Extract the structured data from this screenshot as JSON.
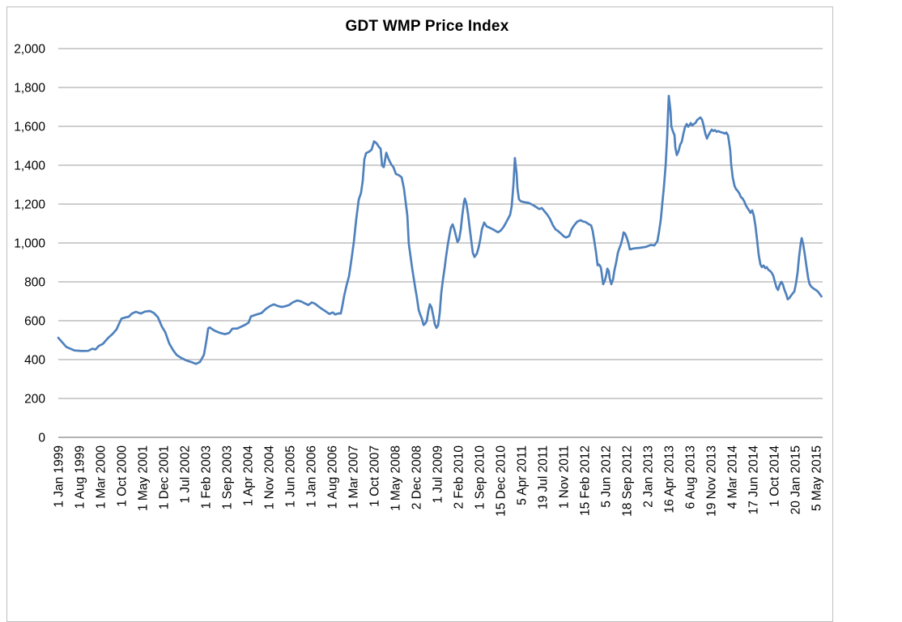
{
  "chart_data": {
    "type": "line",
    "title": "GDT WMP Price Index",
    "series_name": "GDT WMP Price Index",
    "xlabel": "",
    "ylabel": "",
    "ylim": [
      0,
      2000
    ],
    "ytick_step": 200,
    "y_ticks": [
      0,
      200,
      400,
      600,
      800,
      1000,
      1200,
      1400,
      1600,
      1800,
      2000
    ],
    "y_tick_labels": [
      "0",
      "200",
      "400",
      "600",
      "800",
      "1,000",
      "1,200",
      "1,400",
      "1,600",
      "1,800",
      "2,000"
    ],
    "x_tick_labels": [
      "1 Jan 1999",
      "1 Aug 1999",
      "1 Mar 2000",
      "1 Oct 2000",
      "1 May 2001",
      "1 Dec 2001",
      "1 Jul 2002",
      "1 Feb 2003",
      "1 Sep 2003",
      "1 Apr 2004",
      "1 Nov 2004",
      "1 Jun 2005",
      "1 Jan 2006",
      "1 Aug 2006",
      "1 Mar 2007",
      "1 Oct 2007",
      "1 May 2008",
      "2 Dec 2008",
      "1 Jul 2009",
      "2 Feb 2010",
      "1 Sep 2010",
      "15 Dec 2010",
      "5 Apr 2011",
      "19 Jul 2011",
      "1 Nov 2011",
      "15 Feb 2012",
      "5 Jun 2012",
      "18 Sep 2012",
      "2 Jan 2013",
      "16 Apr 2013",
      "6 Aug 2013",
      "19 Nov 2013",
      "4 Mar 2014",
      "17 Jun 2014",
      "1 Oct 2014",
      "20 Jan 2015",
      "5 May 2015"
    ],
    "grid": true,
    "legend": false,
    "colors": {
      "line": "#4F81BD",
      "gridline": "#9c9c9c",
      "axis": "#848484",
      "text": "#000000",
      "frame_border": "#bfbfbf",
      "background": "#ffffff"
    },
    "points_x_unit": "x-tick-index (0 = 1 Jan 1999, 36 = 5 May 2015)",
    "points": [
      [
        0.0,
        512
      ],
      [
        0.38,
        465
      ],
      [
        0.77,
        447
      ],
      [
        1.12,
        444
      ],
      [
        1.42,
        445
      ],
      [
        1.62,
        456
      ],
      [
        1.77,
        452
      ],
      [
        1.92,
        470
      ],
      [
        2.12,
        481
      ],
      [
        2.38,
        513
      ],
      [
        2.58,
        532
      ],
      [
        2.77,
        556
      ],
      [
        2.88,
        583
      ],
      [
        3.0,
        611
      ],
      [
        3.15,
        616
      ],
      [
        3.35,
        621
      ],
      [
        3.5,
        637
      ],
      [
        3.69,
        646
      ],
      [
        3.92,
        637
      ],
      [
        4.12,
        647
      ],
      [
        4.35,
        650
      ],
      [
        4.54,
        640
      ],
      [
        4.73,
        618
      ],
      [
        4.92,
        570
      ],
      [
        5.08,
        541
      ],
      [
        5.27,
        483
      ],
      [
        5.46,
        447
      ],
      [
        5.62,
        424
      ],
      [
        5.85,
        408
      ],
      [
        6.08,
        396
      ],
      [
        6.35,
        386
      ],
      [
        6.54,
        378
      ],
      [
        6.73,
        388
      ],
      [
        6.92,
        425
      ],
      [
        7.04,
        500
      ],
      [
        7.12,
        560
      ],
      [
        7.19,
        566
      ],
      [
        7.42,
        549
      ],
      [
        7.69,
        537
      ],
      [
        7.92,
        531
      ],
      [
        8.12,
        537
      ],
      [
        8.27,
        559
      ],
      [
        8.5,
        560
      ],
      [
        8.69,
        569
      ],
      [
        8.88,
        579
      ],
      [
        9.04,
        590
      ],
      [
        9.15,
        622
      ],
      [
        9.42,
        632
      ],
      [
        9.65,
        639
      ],
      [
        9.85,
        660
      ],
      [
        10.04,
        674
      ],
      [
        10.23,
        684
      ],
      [
        10.42,
        676
      ],
      [
        10.62,
        671
      ],
      [
        10.77,
        674
      ],
      [
        10.96,
        681
      ],
      [
        11.15,
        695
      ],
      [
        11.35,
        704
      ],
      [
        11.54,
        699
      ],
      [
        11.73,
        688
      ],
      [
        11.88,
        681
      ],
      [
        12.04,
        694
      ],
      [
        12.19,
        688
      ],
      [
        12.35,
        674
      ],
      [
        12.5,
        662
      ],
      [
        12.62,
        654
      ],
      [
        12.77,
        643
      ],
      [
        12.88,
        635
      ],
      [
        13.04,
        643
      ],
      [
        13.15,
        632
      ],
      [
        13.31,
        638
      ],
      [
        13.42,
        637
      ],
      [
        13.5,
        680
      ],
      [
        13.58,
        729
      ],
      [
        13.69,
        780
      ],
      [
        13.81,
        830
      ],
      [
        13.92,
        910
      ],
      [
        14.04,
        1005
      ],
      [
        14.15,
        1120
      ],
      [
        14.27,
        1222
      ],
      [
        14.38,
        1258
      ],
      [
        14.46,
        1320
      ],
      [
        14.54,
        1430
      ],
      [
        14.62,
        1462
      ],
      [
        14.77,
        1470
      ],
      [
        14.88,
        1480
      ],
      [
        15.0,
        1523
      ],
      [
        15.12,
        1513
      ],
      [
        15.23,
        1494
      ],
      [
        15.31,
        1485
      ],
      [
        15.38,
        1398
      ],
      [
        15.46,
        1390
      ],
      [
        15.58,
        1464
      ],
      [
        15.69,
        1432
      ],
      [
        15.81,
        1405
      ],
      [
        15.92,
        1390
      ],
      [
        16.04,
        1355
      ],
      [
        16.19,
        1348
      ],
      [
        16.31,
        1337
      ],
      [
        16.42,
        1280
      ],
      [
        16.5,
        1210
      ],
      [
        16.58,
        1140
      ],
      [
        16.65,
        995
      ],
      [
        16.73,
        932
      ],
      [
        16.81,
        868
      ],
      [
        16.88,
        820
      ],
      [
        16.96,
        765
      ],
      [
        17.04,
        716
      ],
      [
        17.12,
        655
      ],
      [
        17.19,
        633
      ],
      [
        17.27,
        611
      ],
      [
        17.35,
        578
      ],
      [
        17.42,
        584
      ],
      [
        17.5,
        598
      ],
      [
        17.58,
        652
      ],
      [
        17.65,
        684
      ],
      [
        17.73,
        668
      ],
      [
        17.81,
        626
      ],
      [
        17.88,
        584
      ],
      [
        17.96,
        563
      ],
      [
        18.04,
        575
      ],
      [
        18.12,
        640
      ],
      [
        18.19,
        740
      ],
      [
        18.27,
        810
      ],
      [
        18.35,
        870
      ],
      [
        18.42,
        930
      ],
      [
        18.5,
        990
      ],
      [
        18.58,
        1040
      ],
      [
        18.65,
        1080
      ],
      [
        18.73,
        1096
      ],
      [
        18.81,
        1070
      ],
      [
        18.88,
        1040
      ],
      [
        18.96,
        1005
      ],
      [
        19.04,
        1018
      ],
      [
        19.12,
        1070
      ],
      [
        19.19,
        1140
      ],
      [
        19.27,
        1210
      ],
      [
        19.31,
        1228
      ],
      [
        19.38,
        1205
      ],
      [
        19.46,
        1150
      ],
      [
        19.54,
        1080
      ],
      [
        19.62,
        1010
      ],
      [
        19.69,
        950
      ],
      [
        19.77,
        928
      ],
      [
        19.88,
        945
      ],
      [
        19.96,
        975
      ],
      [
        20.04,
        1015
      ],
      [
        20.12,
        1070
      ],
      [
        20.23,
        1105
      ],
      [
        20.35,
        1085
      ],
      [
        20.5,
        1078
      ],
      [
        20.65,
        1070
      ],
      [
        20.77,
        1062
      ],
      [
        20.88,
        1055
      ],
      [
        21.0,
        1062
      ],
      [
        21.15,
        1082
      ],
      [
        21.27,
        1105
      ],
      [
        21.38,
        1128
      ],
      [
        21.46,
        1145
      ],
      [
        21.54,
        1190
      ],
      [
        21.62,
        1300
      ],
      [
        21.69,
        1437
      ],
      [
        21.77,
        1360
      ],
      [
        21.81,
        1280
      ],
      [
        21.88,
        1225
      ],
      [
        21.96,
        1215
      ],
      [
        22.12,
        1210
      ],
      [
        22.31,
        1207
      ],
      [
        22.46,
        1200
      ],
      [
        22.58,
        1193
      ],
      [
        22.73,
        1183
      ],
      [
        22.85,
        1174
      ],
      [
        22.96,
        1180
      ],
      [
        23.12,
        1160
      ],
      [
        23.23,
        1145
      ],
      [
        23.35,
        1125
      ],
      [
        23.5,
        1090
      ],
      [
        23.62,
        1070
      ],
      [
        23.73,
        1062
      ],
      [
        23.88,
        1048
      ],
      [
        24.0,
        1035
      ],
      [
        24.12,
        1028
      ],
      [
        24.27,
        1036
      ],
      [
        24.38,
        1070
      ],
      [
        24.5,
        1090
      ],
      [
        24.65,
        1110
      ],
      [
        24.81,
        1117
      ],
      [
        24.92,
        1111
      ],
      [
        25.04,
        1108
      ],
      [
        25.15,
        1100
      ],
      [
        25.31,
        1090
      ],
      [
        25.38,
        1063
      ],
      [
        25.46,
        1010
      ],
      [
        25.54,
        955
      ],
      [
        25.62,
        885
      ],
      [
        25.69,
        889
      ],
      [
        25.77,
        875
      ],
      [
        25.81,
        845
      ],
      [
        25.88,
        788
      ],
      [
        25.96,
        806
      ],
      [
        26.04,
        840
      ],
      [
        26.08,
        868
      ],
      [
        26.15,
        854
      ],
      [
        26.19,
        820
      ],
      [
        26.27,
        788
      ],
      [
        26.35,
        812
      ],
      [
        26.42,
        860
      ],
      [
        26.5,
        900
      ],
      [
        26.58,
        950
      ],
      [
        26.65,
        972
      ],
      [
        26.73,
        995
      ],
      [
        26.81,
        1030
      ],
      [
        26.85,
        1054
      ],
      [
        26.92,
        1049
      ],
      [
        27.0,
        1028
      ],
      [
        27.08,
        1000
      ],
      [
        27.15,
        967
      ],
      [
        27.35,
        972
      ],
      [
        27.62,
        975
      ],
      [
        27.92,
        980
      ],
      [
        28.15,
        990
      ],
      [
        28.31,
        987
      ],
      [
        28.46,
        1010
      ],
      [
        28.54,
        1060
      ],
      [
        28.62,
        1120
      ],
      [
        28.69,
        1200
      ],
      [
        28.77,
        1290
      ],
      [
        28.85,
        1400
      ],
      [
        28.92,
        1540
      ],
      [
        28.96,
        1660
      ],
      [
        29.0,
        1757
      ],
      [
        29.08,
        1680
      ],
      [
        29.12,
        1600
      ],
      [
        29.19,
        1576
      ],
      [
        29.27,
        1555
      ],
      [
        29.31,
        1490
      ],
      [
        29.38,
        1452
      ],
      [
        29.46,
        1472
      ],
      [
        29.54,
        1505
      ],
      [
        29.62,
        1522
      ],
      [
        29.69,
        1560
      ],
      [
        29.77,
        1596
      ],
      [
        29.85,
        1612
      ],
      [
        29.92,
        1598
      ],
      [
        30.0,
        1608
      ],
      [
        30.04,
        1617
      ],
      [
        30.12,
        1605
      ],
      [
        30.19,
        1612
      ],
      [
        30.27,
        1618
      ],
      [
        30.35,
        1633
      ],
      [
        30.5,
        1646
      ],
      [
        30.58,
        1634
      ],
      [
        30.65,
        1606
      ],
      [
        30.73,
        1564
      ],
      [
        30.81,
        1537
      ],
      [
        30.88,
        1554
      ],
      [
        30.96,
        1570
      ],
      [
        31.04,
        1583
      ],
      [
        31.12,
        1576
      ],
      [
        31.19,
        1581
      ],
      [
        31.27,
        1572
      ],
      [
        31.35,
        1576
      ],
      [
        31.46,
        1570
      ],
      [
        31.58,
        1567
      ],
      [
        31.65,
        1563
      ],
      [
        31.73,
        1568
      ],
      [
        31.81,
        1554
      ],
      [
        31.85,
        1528
      ],
      [
        31.92,
        1474
      ],
      [
        31.96,
        1405
      ],
      [
        32.04,
        1335
      ],
      [
        32.12,
        1295
      ],
      [
        32.19,
        1278
      ],
      [
        32.27,
        1268
      ],
      [
        32.35,
        1255
      ],
      [
        32.42,
        1237
      ],
      [
        32.5,
        1229
      ],
      [
        32.58,
        1215
      ],
      [
        32.65,
        1196
      ],
      [
        32.73,
        1181
      ],
      [
        32.81,
        1168
      ],
      [
        32.88,
        1155
      ],
      [
        32.96,
        1168
      ],
      [
        33.04,
        1140
      ],
      [
        33.12,
        1085
      ],
      [
        33.19,
        1020
      ],
      [
        33.27,
        940
      ],
      [
        33.35,
        890
      ],
      [
        33.42,
        876
      ],
      [
        33.5,
        884
      ],
      [
        33.58,
        870
      ],
      [
        33.65,
        876
      ],
      [
        33.73,
        862
      ],
      [
        33.81,
        856
      ],
      [
        33.88,
        848
      ],
      [
        33.96,
        832
      ],
      [
        34.04,
        800
      ],
      [
        34.12,
        770
      ],
      [
        34.19,
        758
      ],
      [
        34.27,
        785
      ],
      [
        34.35,
        800
      ],
      [
        34.42,
        786
      ],
      [
        34.5,
        757
      ],
      [
        34.58,
        735
      ],
      [
        34.65,
        710
      ],
      [
        34.73,
        717
      ],
      [
        34.81,
        730
      ],
      [
        34.88,
        740
      ],
      [
        34.96,
        750
      ],
      [
        35.04,
        790
      ],
      [
        35.12,
        850
      ],
      [
        35.19,
        930
      ],
      [
        35.27,
        1000
      ],
      [
        35.31,
        1025
      ],
      [
        35.38,
        995
      ],
      [
        35.46,
        940
      ],
      [
        35.54,
        880
      ],
      [
        35.62,
        820
      ],
      [
        35.69,
        788
      ],
      [
        35.77,
        775
      ],
      [
        35.85,
        768
      ],
      [
        35.92,
        762
      ],
      [
        36.0,
        757
      ],
      [
        36.08,
        750
      ],
      [
        36.15,
        740
      ],
      [
        36.25,
        725
      ]
    ]
  }
}
